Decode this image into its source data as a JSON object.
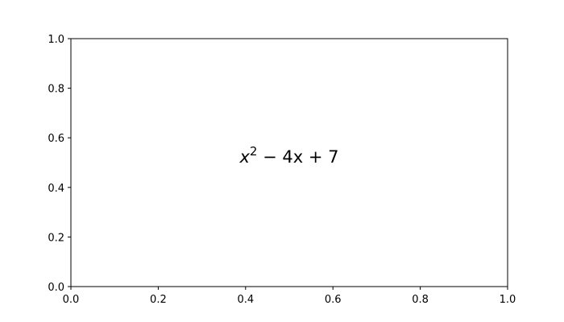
{
  "chart_data": {
    "type": "scatter",
    "title": "",
    "xlabel": "",
    "ylabel": "",
    "xlim": [
      0,
      1
    ],
    "ylim": [
      0,
      1
    ],
    "xticks": [
      0.0,
      0.2,
      0.4,
      0.6,
      0.8,
      1.0
    ],
    "yticks": [
      0.0,
      0.2,
      0.4,
      0.6,
      0.8,
      1.0
    ],
    "xtick_labels": [
      "0.0",
      "0.2",
      "0.4",
      "0.6",
      "0.8",
      "1.0"
    ],
    "ytick_labels": [
      "0.0",
      "0.2",
      "0.4",
      "0.6",
      "0.8",
      "1.0"
    ],
    "grid": false,
    "series": [],
    "annotations": [
      {
        "text_base": "x",
        "text_sup": "2",
        "text_rest": " − 4x + 7",
        "x": 0.5,
        "y": 0.5
      }
    ]
  }
}
